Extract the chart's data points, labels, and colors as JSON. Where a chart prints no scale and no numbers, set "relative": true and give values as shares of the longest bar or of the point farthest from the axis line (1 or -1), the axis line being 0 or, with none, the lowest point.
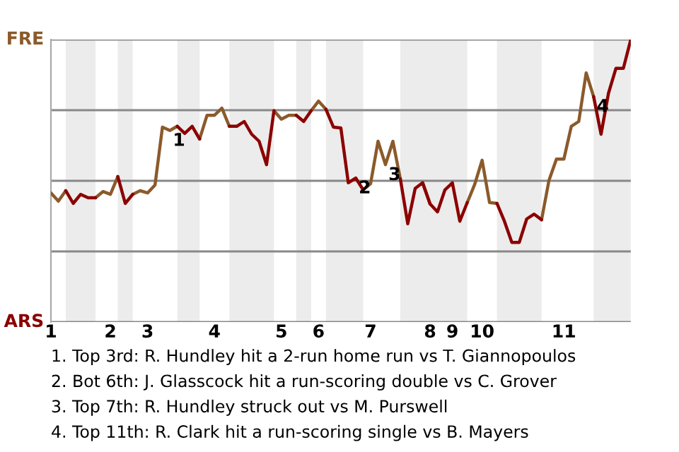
{
  "chart_data": {
    "type": "line",
    "relative": true,
    "categories": [
      "1",
      null,
      null,
      null,
      null,
      null,
      null,
      null,
      "2",
      null,
      null,
      null,
      null,
      "3",
      null,
      null,
      null,
      null,
      null,
      null,
      null,
      null,
      "4",
      null,
      null,
      null,
      null,
      null,
      null,
      null,
      null,
      "5",
      null,
      null,
      null,
      null,
      "6",
      null,
      null,
      null,
      null,
      null,
      null,
      "7",
      null,
      null,
      null,
      null,
      null,
      null,
      null,
      "8",
      null,
      null,
      "9",
      null,
      null,
      null,
      "10",
      null,
      null,
      null,
      null,
      null,
      null,
      null,
      null,
      null,
      null,
      "11",
      null,
      null,
      null,
      null,
      null,
      null,
      null,
      null,
      null
    ],
    "series": [
      {
        "name": "FRE",
        "color": "#8b5a2b",
        "values": [
          0.457,
          0.428,
          0.465,
          null,
          null,
          null,
          0.44,
          0.462,
          0.452,
          0.515,
          null,
          0.452,
          0.465,
          0.457,
          0.485,
          0.69,
          0.678,
          0.693,
          null,
          null,
          0.648,
          0.732,
          0.732,
          0.757,
          0.693,
          null,
          null,
          null,
          null,
          null,
          0.748,
          0.718,
          0.732,
          0.732,
          null,
          0.748,
          0.782,
          0.753,
          null,
          null,
          null,
          null,
          0.468,
          0.49,
          0.64,
          0.557,
          0.64,
          0.507,
          null,
          null,
          0.493,
          0.418,
          null,
          null,
          null,
          null,
          0.423,
          0.487,
          0.573,
          0.423,
          0.42,
          null,
          null,
          null,
          null,
          null,
          0.362,
          0.502,
          0.577,
          0.577,
          0.693,
          0.71,
          0.882,
          0.798,
          null,
          null,
          null,
          null,
          null
        ]
      },
      {
        "name": "ARS",
        "color": "#8b0000",
        "values": [
          null,
          null,
          0.465,
          0.42,
          0.452,
          0.44,
          0.44,
          null,
          null,
          0.515,
          0.42,
          0.452,
          null,
          null,
          null,
          null,
          null,
          0.693,
          0.668,
          0.693,
          0.648,
          null,
          null,
          null,
          0.693,
          0.693,
          0.71,
          0.665,
          0.64,
          0.557,
          0.748,
          null,
          null,
          0.732,
          0.71,
          0.748,
          null,
          0.753,
          0.69,
          0.687,
          0.493,
          0.51,
          0.468,
          null,
          null,
          null,
          null,
          0.507,
          0.348,
          0.473,
          0.493,
          0.418,
          0.39,
          0.468,
          0.493,
          0.357,
          0.423,
          null,
          null,
          null,
          0.42,
          0.357,
          0.282,
          0.282,
          0.365,
          0.382,
          0.362,
          null,
          null,
          null,
          null,
          null,
          null,
          0.798,
          0.665,
          0.81,
          0.898,
          0.898,
          1
        ]
      }
    ],
    "grid": "y",
    "annotations": [
      {
        "text": "1",
        "y": 0.678
      },
      {
        "text": "2",
        "y": 0.51
      },
      {
        "text": "3",
        "y": 0.557
      },
      {
        "text": "4",
        "y": 0.798
      },
      "1. Top 3rd: R. Hundley hit a 2-run home run vs T. Giannopoulos",
      "2. Bot 6th: J. Glasscock hit a run-scoring double vs C. Grover",
      "3. Top 7th: R. Hundley struck out vs M. Purswell",
      "4. Top 11th: R. Clark hit a run-scoring single vs B. Mayers"
    ],
    "line_style": "solid"
  }
}
